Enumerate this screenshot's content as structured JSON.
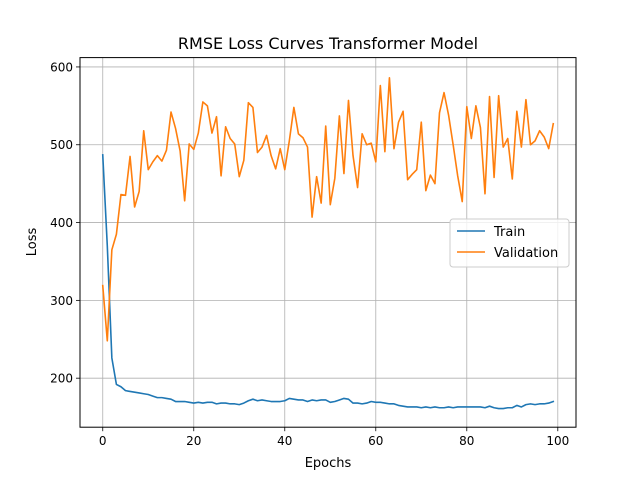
{
  "chart_data": {
    "type": "line",
    "title": "RMSE Loss Curves Transformer Model",
    "xlabel": "Epochs",
    "ylabel": "Loss",
    "xlim": [
      -5,
      104
    ],
    "ylim": [
      137,
      612
    ],
    "xticks": [
      0,
      20,
      40,
      60,
      80,
      100
    ],
    "yticks": [
      200,
      300,
      400,
      500,
      600
    ],
    "xtick_labels": [
      "0",
      "20",
      "40",
      "60",
      "80",
      "100"
    ],
    "ytick_labels": [
      "200",
      "300",
      "400",
      "500",
      "600"
    ],
    "grid": true,
    "legend_position": "center-right",
    "series": [
      {
        "name": "Train",
        "color": "#1f77b4",
        "values": [
          487,
          370,
          226,
          192,
          189,
          184,
          183,
          182,
          181,
          180,
          179,
          177,
          175,
          175,
          174,
          173,
          170,
          170,
          170,
          169,
          168,
          169,
          168,
          169,
          169,
          167,
          168,
          168,
          167,
          167,
          166,
          168,
          171,
          173,
          171,
          172,
          171,
          170,
          170,
          170,
          171,
          174,
          173,
          172,
          172,
          170,
          172,
          171,
          172,
          172,
          169,
          170,
          172,
          174,
          173,
          168,
          168,
          167,
          168,
          170,
          169,
          169,
          168,
          167,
          167,
          165,
          164,
          163,
          163,
          163,
          162,
          163,
          162,
          163,
          162,
          162,
          163,
          162,
          163,
          163,
          163,
          163,
          163,
          163,
          162,
          164,
          162,
          161,
          161,
          162,
          162,
          165,
          163,
          166,
          167,
          166,
          167,
          167,
          168,
          170
        ]
      },
      {
        "name": "Validation",
        "color": "#ff7f0e",
        "values": [
          319,
          248,
          365,
          385,
          436,
          435,
          485,
          420,
          440,
          518,
          468,
          478,
          486,
          479,
          493,
          542,
          521,
          492,
          428,
          501,
          494,
          515,
          555,
          550,
          515,
          536,
          460,
          523,
          508,
          501,
          459,
          480,
          554,
          548,
          490,
          497,
          512,
          486,
          469,
          495,
          468,
          505,
          548,
          514,
          509,
          497,
          407,
          459,
          425,
          524,
          423,
          457,
          537,
          463,
          557,
          486,
          445,
          514,
          500,
          502,
          478,
          576,
          491,
          586,
          495,
          529,
          543,
          455,
          462,
          468,
          529,
          441,
          461,
          450,
          541,
          567,
          538,
          500,
          460,
          427,
          549,
          508,
          550,
          522,
          437,
          562,
          458,
          563,
          497,
          508,
          456,
          543,
          497,
          558,
          500,
          505,
          518,
          510,
          495,
          527
        ]
      }
    ]
  }
}
